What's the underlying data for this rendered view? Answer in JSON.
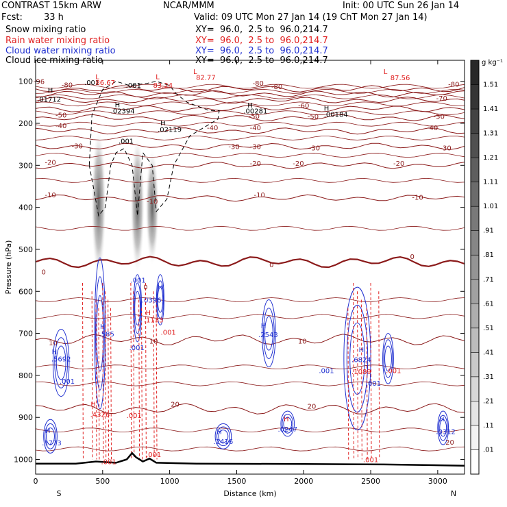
{
  "header": {
    "model": "CONTRAST 15km ARW",
    "center": "NCAR/MMM",
    "init": "Init: 00 UTC Sun 26 Jan 14",
    "fcst_label": "Fcst:",
    "fcst_value": "33 h",
    "valid": "Valid: 09 UTC Mon 27 Jan 14 (19 ChT Mon 27 Jan 14)"
  },
  "fields": [
    {
      "name": "Snow mixing ratio",
      "xy": "XY=  96.0,  2.5 to  96.0,214.7",
      "color": "#000000"
    },
    {
      "name": "Rain water mixing ratio",
      "xy": "XY=  96.0,  2.5 to  96.0,214.7",
      "color": "#e02020"
    },
    {
      "name": "Cloud water mixing ratio",
      "xy": "XY=  96.0,  2.5 to  96.0,214.7",
      "color": "#2030d0"
    },
    {
      "name": "Cloud ice mixing ratio",
      "xy": "XY=  96.0,  2.5 to  96.0,214.7",
      "color": "#000000"
    }
  ],
  "chart_data": {
    "type": "heatmap",
    "xlabel": "Distance (km)",
    "ylabel": "Pressure (hPa)",
    "xlim": [
      0,
      3200
    ],
    "ylim": [
      1035,
      50
    ],
    "x_ticks": [
      0,
      500,
      1000,
      1500,
      2000,
      2500,
      3000
    ],
    "y_ticks": [
      100,
      200,
      300,
      400,
      500,
      600,
      700,
      800,
      900,
      1000
    ],
    "x_end_labels": {
      "left": "S",
      "right": "N"
    },
    "colorbar": {
      "unit": "g kg⁻¹",
      "levels": [
        ".01",
        ".11",
        ".21",
        ".31",
        ".41",
        ".51",
        ".61",
        ".71",
        ".81",
        ".91",
        "1.01",
        "1.11",
        "1.21",
        "1.31",
        "1.41",
        "1.51"
      ]
    },
    "temperature_contours": [
      {
        "label": "-90",
        "p": 118
      },
      {
        "label": "-80",
        "p": 130
      },
      {
        "label": "-70",
        "p": 145
      },
      {
        "label": "-60",
        "p": 165
      },
      {
        "label": "-50",
        "p": 187
      },
      {
        "label": "-40",
        "p": 218
      },
      {
        "label": "-30",
        "p": 255
      },
      {
        "label": "-20",
        "p": 300
      },
      {
        "label": "-10",
        "p": 378
      },
      {
        "label": "0",
        "p": 530
      },
      {
        "label": "10",
        "p": 715
      },
      {
        "label": "20",
        "p": 880
      }
    ],
    "temperature_labels": [
      {
        "text": "-96",
        "x": 25,
        "p": 100
      },
      {
        "text": "-80",
        "x": 235,
        "p": 108
      },
      {
        "text": "-80",
        "x": 1660,
        "p": 104
      },
      {
        "text": "-80",
        "x": 3120,
        "p": 106
      },
      {
        "text": "-80",
        "x": 1800,
        "p": 112
      },
      {
        "text": "-70",
        "x": 3030,
        "p": 140
      },
      {
        "text": "-60",
        "x": 2000,
        "p": 157
      },
      {
        "text": "-50",
        "x": 190,
        "p": 180
      },
      {
        "text": "-50",
        "x": 1630,
        "p": 182
      },
      {
        "text": "-50",
        "x": 2070,
        "p": 183
      },
      {
        "text": "-50",
        "x": 3010,
        "p": 183
      },
      {
        "text": "-40",
        "x": 190,
        "p": 205
      },
      {
        "text": "-40",
        "x": 1320,
        "p": 210
      },
      {
        "text": "-40",
        "x": 1640,
        "p": 210
      },
      {
        "text": "-40",
        "x": 2960,
        "p": 210
      },
      {
        "text": "-30",
        "x": 310,
        "p": 253
      },
      {
        "text": "-30",
        "x": 1480,
        "p": 255
      },
      {
        "text": "-30",
        "x": 1640,
        "p": 255
      },
      {
        "text": "-30",
        "x": 2080,
        "p": 258
      },
      {
        "text": "-30",
        "x": 3060,
        "p": 258
      },
      {
        "text": "-20",
        "x": 110,
        "p": 292
      },
      {
        "text": "-20",
        "x": 1640,
        "p": 295
      },
      {
        "text": "-20",
        "x": 1960,
        "p": 295
      },
      {
        "text": "-20",
        "x": 2710,
        "p": 295
      },
      {
        "text": "-10",
        "x": 110,
        "p": 370
      },
      {
        "text": "-10",
        "x": 870,
        "p": 385
      },
      {
        "text": "-10",
        "x": 1670,
        "p": 370
      },
      {
        "text": "-10",
        "x": 2850,
        "p": 375
      },
      {
        "text": "0",
        "x": 1760,
        "p": 536
      },
      {
        "text": "0",
        "x": 2810,
        "p": 516
      },
      {
        "text": "0",
        "x": 60,
        "p": 553
      },
      {
        "text": "0",
        "x": 820,
        "p": 589
      },
      {
        "text": "10",
        "x": 130,
        "p": 722
      },
      {
        "text": "10",
        "x": 880,
        "p": 718
      },
      {
        "text": "10",
        "x": 1990,
        "p": 718
      },
      {
        "text": "20",
        "x": 1040,
        "p": 868
      },
      {
        "text": "20",
        "x": 2060,
        "p": 873
      },
      {
        "text": "20",
        "x": 3090,
        "p": 958
      }
    ],
    "snow_columns": [
      {
        "x": 470,
        "p_top": 210,
        "p_bot": 570,
        "w": 50
      },
      {
        "x": 760,
        "p_top": 230,
        "p_bot": 560,
        "w": 45
      },
      {
        "x": 870,
        "p_top": 260,
        "p_bot": 540,
        "w": 40
      }
    ],
    "extrema_labels": [
      {
        "text": "L",
        "x": 460,
        "p": 88,
        "color": "#e02020"
      },
      {
        "text": ".001",
        "x": 420,
        "p": 102,
        "color": "#000000"
      },
      {
        "text": "86.67",
        "x": 520,
        "p": 102,
        "color": "#e02020"
      },
      {
        "text": ".001",
        "x": 730,
        "p": 109,
        "color": "#000000"
      },
      {
        "text": "L",
        "x": 910,
        "p": 88,
        "color": "#e02020"
      },
      {
        "text": "83.24",
        "x": 950,
        "p": 109,
        "color": "#e02020"
      },
      {
        "text": "L",
        "x": 1190,
        "p": 76,
        "color": "#e02020"
      },
      {
        "text": "82.77",
        "x": 1270,
        "p": 90,
        "color": "#e02020"
      },
      {
        "text": "L",
        "x": 2610,
        "p": 76,
        "color": "#e02020"
      },
      {
        "text": "87.56",
        "x": 2720,
        "p": 91,
        "color": "#e02020"
      },
      {
        "text": "H",
        "x": 110,
        "p": 120,
        "color": "#000000"
      },
      {
        "text": ".01712",
        "x": 100,
        "p": 142,
        "color": "#000000"
      },
      {
        "text": "H",
        "x": 610,
        "p": 155,
        "color": "#000000"
      },
      {
        "text": ".02394",
        "x": 650,
        "p": 170,
        "color": "#000000"
      },
      {
        "text": "H",
        "x": 1600,
        "p": 156,
        "color": "#000000"
      },
      {
        "text": ".00281",
        "x": 1640,
        "p": 170,
        "color": "#000000"
      },
      {
        "text": "H",
        "x": 2170,
        "p": 163,
        "color": "#000000"
      },
      {
        "text": ".00184",
        "x": 2240,
        "p": 178,
        "color": "#000000"
      },
      {
        "text": "H",
        "x": 950,
        "p": 198,
        "color": "#000000"
      },
      {
        "text": ".02119",
        "x": 1000,
        "p": 214,
        "color": "#000000"
      },
      {
        "text": ".001",
        "x": 675,
        "p": 242,
        "color": "#000000"
      },
      {
        "text": ".001",
        "x": 765,
        "p": 573,
        "color": "#2030d0"
      },
      {
        "text": "H",
        "x": 930,
        "p": 589,
        "color": "#2030d0"
      },
      {
        "text": ".0396",
        "x": 865,
        "p": 620,
        "color": "#2030d0"
      },
      {
        "text": "H",
        "x": 840,
        "p": 650,
        "color": "#e02020"
      },
      {
        "text": ".1133",
        "x": 880,
        "p": 667,
        "color": "#e02020"
      },
      {
        "text": ".001",
        "x": 990,
        "p": 697,
        "color": "#e02020"
      },
      {
        "text": "H",
        "x": 500,
        "p": 683,
        "color": "#2030d0"
      },
      {
        "text": ".585",
        "x": 530,
        "p": 701,
        "color": "#2030d0"
      },
      {
        "text": ".001",
        "x": 755,
        "p": 733,
        "color": "#2030d0"
      },
      {
        "text": "H",
        "x": 1700,
        "p": 681,
        "color": "#2030d0"
      },
      {
        "text": ".2543",
        "x": 1735,
        "p": 702,
        "color": "#2030d0"
      },
      {
        "text": "H",
        "x": 140,
        "p": 743,
        "color": "#2030d0"
      },
      {
        "text": ".5692",
        "x": 190,
        "p": 760,
        "color": "#2030d0"
      },
      {
        "text": ".001",
        "x": 235,
        "p": 813,
        "color": "#2030d0"
      },
      {
        "text": ".001",
        "x": 2170,
        "p": 788,
        "color": "#2030d0"
      },
      {
        "text": "H",
        "x": 2430,
        "p": 738,
        "color": "#2030d0"
      },
      {
        "text": ".6824",
        "x": 2430,
        "p": 762,
        "color": "#2030d0"
      },
      {
        "text": ".1089",
        "x": 2430,
        "p": 790,
        "color": "#e02020"
      },
      {
        "text": ".001",
        "x": 2520,
        "p": 818,
        "color": "#2030d0"
      },
      {
        "text": ".001",
        "x": 2670,
        "p": 788,
        "color": "#e02020"
      },
      {
        "text": "H",
        "x": 430,
        "p": 868,
        "color": "#e02020"
      },
      {
        "text": ".4326",
        "x": 480,
        "p": 892,
        "color": "#e02020"
      },
      {
        "text": ".001",
        "x": 735,
        "p": 895,
        "color": "#e02020"
      },
      {
        "text": "H",
        "x": 90,
        "p": 931,
        "color": "#2030d0"
      },
      {
        "text": ".1773",
        "x": 120,
        "p": 960,
        "color": "#2030d0"
      },
      {
        "text": "H",
        "x": 1370,
        "p": 933,
        "color": "#2030d0"
      },
      {
        "text": ".2416",
        "x": 1400,
        "p": 957,
        "color": "#2030d0"
      },
      {
        "text": "H",
        "x": 1870,
        "p": 903,
        "color": "#e02020"
      },
      {
        "text": ".0247",
        "x": 1880,
        "p": 927,
        "color": "#2030d0"
      },
      {
        "text": "H",
        "x": 3030,
        "p": 903,
        "color": "#2030d0"
      },
      {
        "text": ".0312",
        "x": 3060,
        "p": 933,
        "color": "#2030d0"
      },
      {
        "text": ".001",
        "x": 880,
        "p": 988,
        "color": "#e02020"
      },
      {
        "text": ".001",
        "x": 545,
        "p": 1005,
        "color": "#e02020"
      },
      {
        "text": ".001",
        "x": 2500,
        "p": 1000,
        "color": "#e02020"
      }
    ],
    "terrain": [
      [
        0,
        1010
      ],
      [
        300,
        1010
      ],
      [
        450,
        1005
      ],
      [
        600,
        1008
      ],
      [
        680,
        1000
      ],
      [
        720,
        985
      ],
      [
        750,
        995
      ],
      [
        800,
        1005
      ],
      [
        850,
        998
      ],
      [
        900,
        1008
      ],
      [
        1200,
        1010
      ],
      [
        2000,
        1011
      ],
      [
        2600,
        1012
      ],
      [
        3200,
        1015
      ]
    ]
  }
}
